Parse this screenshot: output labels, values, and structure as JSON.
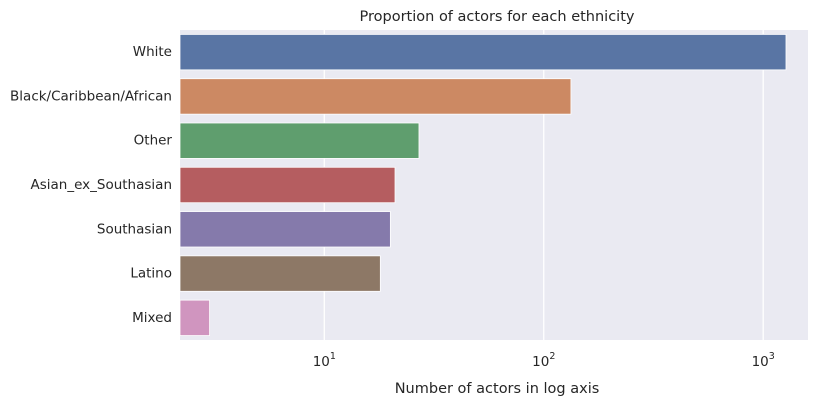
{
  "chart_data": {
    "type": "bar",
    "orientation": "horizontal",
    "title": "Proportion of actors for each ethnicity",
    "xlabel": "Number of actors in log axis",
    "ylabel": "",
    "x_scale": "log",
    "xlim": [
      2.2,
      1600
    ],
    "x_ticks": [
      {
        "value": 10,
        "base": "10",
        "exp": "1"
      },
      {
        "value": 100,
        "base": "10",
        "exp": "2"
      },
      {
        "value": 1000,
        "base": "10",
        "exp": "3"
      }
    ],
    "grid": true,
    "categories": [
      "White",
      "Black/Caribbean/African",
      "Other",
      "Asian_ex_Southasian",
      "Southasian",
      "Latino",
      "Mixed"
    ],
    "values": [
      1270,
      133,
      27,
      21,
      20,
      18,
      3
    ],
    "colors": [
      "#5975a4",
      "#cc8963",
      "#5f9e6e",
      "#b55d60",
      "#857aab",
      "#8d7866",
      "#d095bf"
    ],
    "background_color": "#eaeaf2",
    "grid_color": "#ffffff"
  }
}
